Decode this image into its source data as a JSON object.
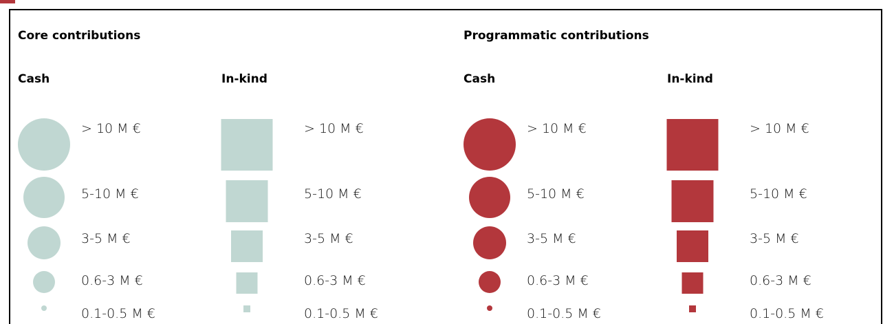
{
  "sections": [
    {
      "title": "Core contributions",
      "groups": [
        {
          "title": "Cash",
          "items": [
            "> 10 M €",
            "5-10 M €",
            "3-5 M €",
            "0.6-3 M €",
            "0.1-0.5 M €"
          ]
        },
        {
          "title": "In-kind",
          "items": [
            "> 10 M €",
            "5-10 M €",
            "3-5 M €",
            "0.6-3 M €",
            "0.1-0.5 M €"
          ]
        }
      ]
    },
    {
      "title": "Programmatic contributions",
      "groups": [
        {
          "title": "Cash",
          "items": [
            "> 10 M €",
            "5-10 M €",
            "3-5 M €",
            "0.6-3 M €",
            "0.1-0.5 M €"
          ]
        },
        {
          "title": "In-kind",
          "items": [
            "> 10 M €",
            "5-10 M €",
            "3-5 M €",
            "0.6-3 M €",
            "0.1-0.5 M €"
          ]
        }
      ]
    }
  ]
}
